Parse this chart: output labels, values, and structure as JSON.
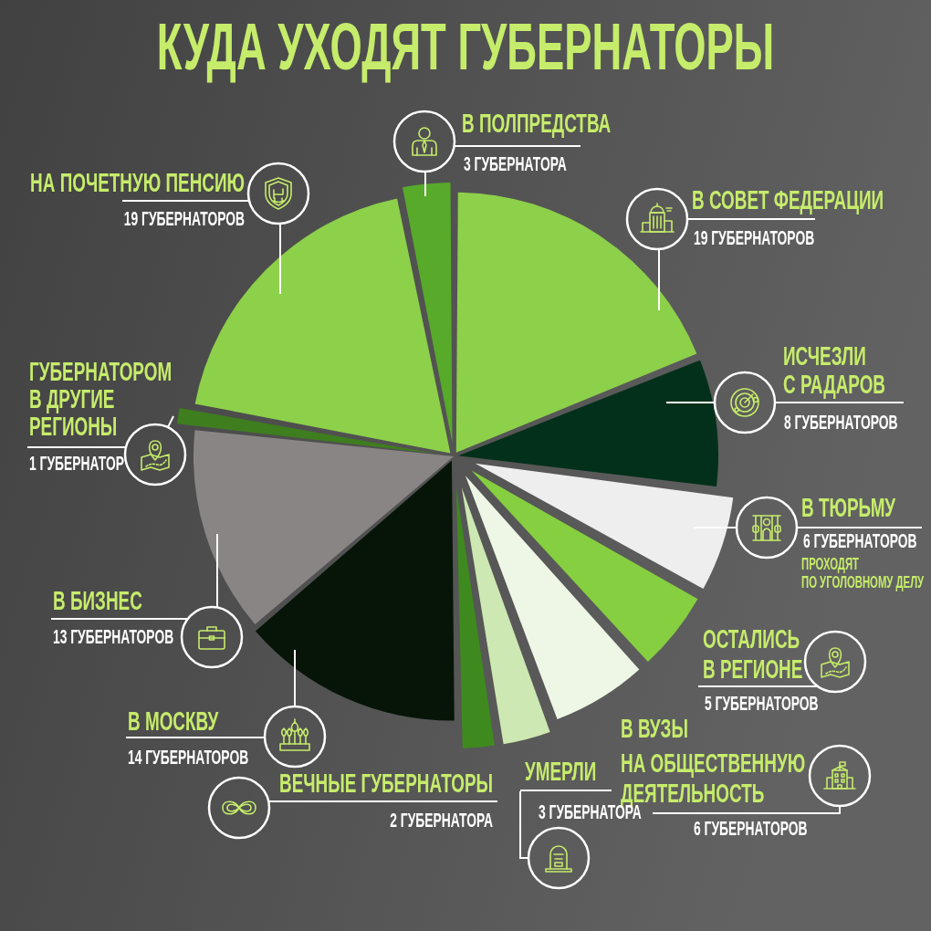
{
  "chart_data": {
    "type": "pie",
    "title": "КУДА УХОДЯТ ГУБЕРНАТОРЫ",
    "categories": [
      "В СОВЕТ ФЕДЕРАЦИИ",
      "ИСЧЕЗЛИ С РАДАРОВ",
      "В ТЮРЬМУ",
      "ОСТАЛИСЬ В РЕГИОНЕ",
      "В ВУЗЫ НА ОБЩЕСТВЕННУЮ ДЕЯТЕЛЬНОСТЬ",
      "УМЕРЛИ",
      "ВЕЧНЫЕ ГУБЕРНАТОРЫ",
      "В МОСКВУ",
      "В БИЗНЕС",
      "ГУБЕРНАТОРОМ В ДРУГИЕ РЕГИОНЫ",
      "НА ПОЧЕТНУЮ ПЕНСИЮ",
      "В ПОЛПРЕДСТВА"
    ],
    "values": [
      19,
      8,
      6,
      5,
      6,
      3,
      2,
      14,
      13,
      1,
      19,
      3
    ],
    "colors": [
      "#8dd04a",
      "#03301a",
      "#eeeeee",
      "#86cf40",
      "#eef6e6",
      "#cde8b2",
      "#3f8a1e",
      "#061508",
      "#8a8585",
      "#3e7e1e",
      "#8dd04a",
      "#58aa2a"
    ],
    "value_labels": [
      "19 ГУБЕРНАТОРОВ",
      "8 ГУБЕРНАТОРОВ",
      "6 ГУБЕРНАТОРОВ",
      "5 ГУБЕРНАТОРОВ",
      "6 ГУБЕРНАТОРОВ",
      "3 ГУБЕРНАТОРА",
      "2 ГУБЕРНАТОРА",
      "14 ГУБЕРНАТОРОВ",
      "13 ГУБЕРНАТОРОВ",
      "1 ГУБЕРНАТОР",
      "19 ГУБЕРНАТОРОВ",
      "3 ГУБЕРНАТОРА"
    ],
    "annotations": [
      "ПРОХОДЯТ ПО УГОЛОВНОМУ ДЕЛУ"
    ]
  }
}
